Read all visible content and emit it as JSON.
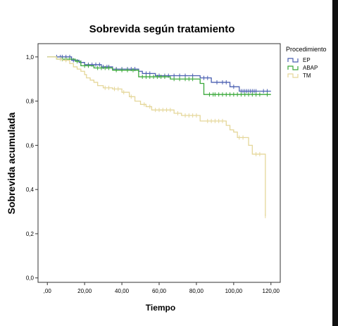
{
  "chart_data": {
    "type": "line",
    "step": true,
    "title": "Sobrevida según tratamiento",
    "xlabel": "Tiempo",
    "ylabel": "Sobrevida acumulada",
    "xlim": [
      -5,
      125
    ],
    "ylim": [
      -0.02,
      1.06
    ],
    "x_ticks": [
      {
        "value": 0,
        "label": ",00"
      },
      {
        "value": 20,
        "label": "20,00"
      },
      {
        "value": 40,
        "label": "40,00"
      },
      {
        "value": 60,
        "label": "60,00"
      },
      {
        "value": 80,
        "label": "80,00"
      },
      {
        "value": 100,
        "label": "100,00"
      },
      {
        "value": 120,
        "label": "120,00"
      }
    ],
    "y_ticks": [
      {
        "value": 0,
        "label": "0,0"
      },
      {
        "value": 0.2,
        "label": "0,2"
      },
      {
        "value": 0.4,
        "label": "0,4"
      },
      {
        "value": 0.6,
        "label": "0,6"
      },
      {
        "value": 0.8,
        "label": "0,8"
      },
      {
        "value": 1.0,
        "label": "1,0"
      }
    ],
    "grid": false,
    "legend": {
      "title": "Procedimiento",
      "position": "right"
    },
    "series": [
      {
        "name": "EP",
        "color": "#4a5fb0",
        "steps": [
          [
            0,
            1.0
          ],
          [
            13,
            0.985
          ],
          [
            17,
            0.975
          ],
          [
            20,
            0.965
          ],
          [
            29,
            0.955
          ],
          [
            35,
            0.945
          ],
          [
            49,
            0.935
          ],
          [
            51,
            0.925
          ],
          [
            58,
            0.915
          ],
          [
            82,
            0.905
          ],
          [
            88,
            0.885
          ],
          [
            98,
            0.865
          ],
          [
            103,
            0.845
          ],
          [
            120,
            0.845
          ]
        ],
        "censored": [
          [
            5,
            1.0
          ],
          [
            7,
            1.0
          ],
          [
            8,
            1.0
          ],
          [
            10,
            1.0
          ],
          [
            12,
            1.0
          ],
          [
            14,
            0.985
          ],
          [
            18,
            0.975
          ],
          [
            22,
            0.965
          ],
          [
            24,
            0.965
          ],
          [
            26,
            0.965
          ],
          [
            28,
            0.965
          ],
          [
            30,
            0.955
          ],
          [
            32,
            0.955
          ],
          [
            33,
            0.955
          ],
          [
            37,
            0.945
          ],
          [
            40,
            0.945
          ],
          [
            43,
            0.945
          ],
          [
            45,
            0.945
          ],
          [
            47,
            0.945
          ],
          [
            53,
            0.925
          ],
          [
            55,
            0.925
          ],
          [
            60,
            0.915
          ],
          [
            63,
            0.915
          ],
          [
            65,
            0.915
          ],
          [
            68,
            0.915
          ],
          [
            71,
            0.915
          ],
          [
            74,
            0.915
          ],
          [
            78,
            0.915
          ],
          [
            84,
            0.905
          ],
          [
            86,
            0.905
          ],
          [
            91,
            0.885
          ],
          [
            94,
            0.885
          ],
          [
            96,
            0.885
          ],
          [
            100,
            0.865
          ],
          [
            104,
            0.845
          ],
          [
            105,
            0.845
          ],
          [
            106,
            0.845
          ],
          [
            107,
            0.845
          ],
          [
            108,
            0.845
          ],
          [
            109,
            0.845
          ],
          [
            110,
            0.845
          ],
          [
            111,
            0.845
          ],
          [
            112,
            0.845
          ],
          [
            116,
            0.845
          ],
          [
            118,
            0.845
          ]
        ]
      },
      {
        "name": "ABAP",
        "color": "#3aa83a",
        "steps": [
          [
            0,
            1.0
          ],
          [
            5,
            0.99
          ],
          [
            15,
            0.98
          ],
          [
            18,
            0.96
          ],
          [
            25,
            0.95
          ],
          [
            35,
            0.94
          ],
          [
            49,
            0.91
          ],
          [
            66,
            0.9
          ],
          [
            82,
            0.88
          ],
          [
            84,
            0.83
          ],
          [
            120,
            0.83
          ]
        ],
        "censored": [
          [
            8,
            0.99
          ],
          [
            10,
            0.99
          ],
          [
            12,
            0.99
          ],
          [
            16,
            0.98
          ],
          [
            20,
            0.96
          ],
          [
            22,
            0.96
          ],
          [
            27,
            0.95
          ],
          [
            29,
            0.95
          ],
          [
            31,
            0.95
          ],
          [
            33,
            0.95
          ],
          [
            37,
            0.94
          ],
          [
            40,
            0.94
          ],
          [
            43,
            0.94
          ],
          [
            46,
            0.94
          ],
          [
            51,
            0.91
          ],
          [
            53,
            0.91
          ],
          [
            55,
            0.91
          ],
          [
            57,
            0.91
          ],
          [
            59,
            0.91
          ],
          [
            61,
            0.91
          ],
          [
            63,
            0.91
          ],
          [
            68,
            0.9
          ],
          [
            71,
            0.9
          ],
          [
            74,
            0.9
          ],
          [
            76,
            0.9
          ],
          [
            78,
            0.9
          ],
          [
            87,
            0.83
          ],
          [
            89,
            0.83
          ],
          [
            90,
            0.83
          ],
          [
            92,
            0.83
          ],
          [
            94,
            0.83
          ],
          [
            96,
            0.83
          ],
          [
            98,
            0.83
          ],
          [
            100,
            0.83
          ],
          [
            102,
            0.83
          ],
          [
            104,
            0.83
          ],
          [
            106,
            0.83
          ],
          [
            108,
            0.83
          ],
          [
            110,
            0.83
          ],
          [
            112,
            0.83
          ],
          [
            114,
            0.83
          ],
          [
            118,
            0.83
          ]
        ]
      },
      {
        "name": "TM",
        "color": "#e5d79a",
        "steps": [
          [
            0,
            1.0
          ],
          [
            5,
            0.99
          ],
          [
            8,
            0.985
          ],
          [
            12,
            0.97
          ],
          [
            14,
            0.955
          ],
          [
            16,
            0.945
          ],
          [
            18,
            0.935
          ],
          [
            20,
            0.92
          ],
          [
            21,
            0.905
          ],
          [
            23,
            0.895
          ],
          [
            25,
            0.885
          ],
          [
            27,
            0.87
          ],
          [
            30,
            0.86
          ],
          [
            35,
            0.855
          ],
          [
            40,
            0.84
          ],
          [
            44,
            0.82
          ],
          [
            47,
            0.8
          ],
          [
            50,
            0.785
          ],
          [
            53,
            0.775
          ],
          [
            56,
            0.76
          ],
          [
            68,
            0.745
          ],
          [
            72,
            0.735
          ],
          [
            82,
            0.71
          ],
          [
            96,
            0.69
          ],
          [
            98,
            0.67
          ],
          [
            100,
            0.66
          ],
          [
            102,
            0.635
          ],
          [
            108,
            0.6
          ],
          [
            110,
            0.56
          ],
          [
            117,
            0.28
          ]
        ],
        "censored": [
          [
            7,
            0.99
          ],
          [
            10,
            0.985
          ],
          [
            31,
            0.86
          ],
          [
            33,
            0.86
          ],
          [
            36,
            0.855
          ],
          [
            38,
            0.855
          ],
          [
            41,
            0.84
          ],
          [
            45,
            0.82
          ],
          [
            52,
            0.785
          ],
          [
            55,
            0.775
          ],
          [
            58,
            0.76
          ],
          [
            60,
            0.76
          ],
          [
            62,
            0.76
          ],
          [
            64,
            0.76
          ],
          [
            66,
            0.76
          ],
          [
            70,
            0.745
          ],
          [
            74,
            0.735
          ],
          [
            76,
            0.735
          ],
          [
            78,
            0.735
          ],
          [
            80,
            0.735
          ],
          [
            86,
            0.71
          ],
          [
            88,
            0.71
          ],
          [
            90,
            0.71
          ],
          [
            92,
            0.71
          ],
          [
            94,
            0.71
          ],
          [
            103,
            0.635
          ],
          [
            105,
            0.635
          ],
          [
            112,
            0.56
          ],
          [
            114,
            0.56
          ],
          [
            117,
            0.28
          ]
        ]
      }
    ]
  }
}
